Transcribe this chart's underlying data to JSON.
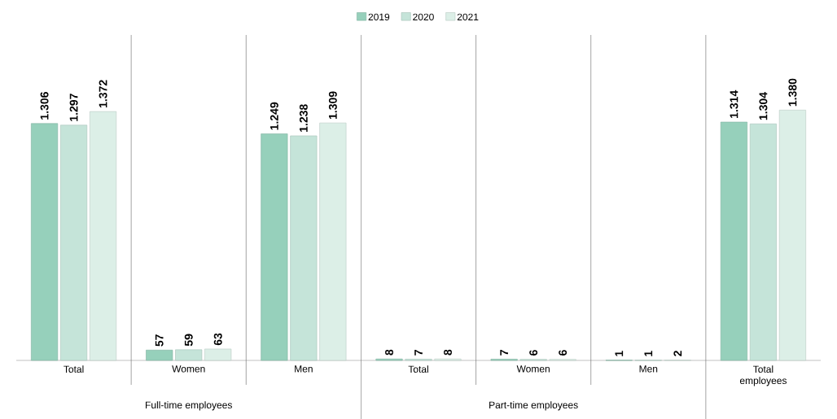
{
  "chart_data": {
    "type": "bar",
    "categories": [
      "Total",
      "Women",
      "Men",
      "Total",
      "Women",
      "Men",
      "Total employees"
    ],
    "series": [
      {
        "name": "2019",
        "color": "#96d0bb",
        "values": [
          1306,
          57,
          1249,
          8,
          7,
          1,
          1314
        ],
        "value_labels": [
          "1.306",
          "57",
          "1.249",
          "8",
          "7",
          "1",
          "1.314"
        ]
      },
      {
        "name": "2020",
        "color": "#c5e4d9",
        "values": [
          1297,
          59,
          1238,
          7,
          6,
          1,
          1304
        ],
        "value_labels": [
          "1.297",
          "59",
          "1.238",
          "7",
          "6",
          "1",
          "1.304"
        ]
      },
      {
        "name": "2021",
        "color": "#dcefe7",
        "values": [
          1372,
          63,
          1309,
          8,
          6,
          2,
          1380
        ],
        "value_labels": [
          "1.372",
          "63",
          "1.309",
          "8",
          "6",
          "2",
          "1.380"
        ]
      }
    ],
    "annotations": [
      "Full-time employees",
      "Part-time employees"
    ],
    "legend": "top",
    "tick_labels": "x"
  }
}
